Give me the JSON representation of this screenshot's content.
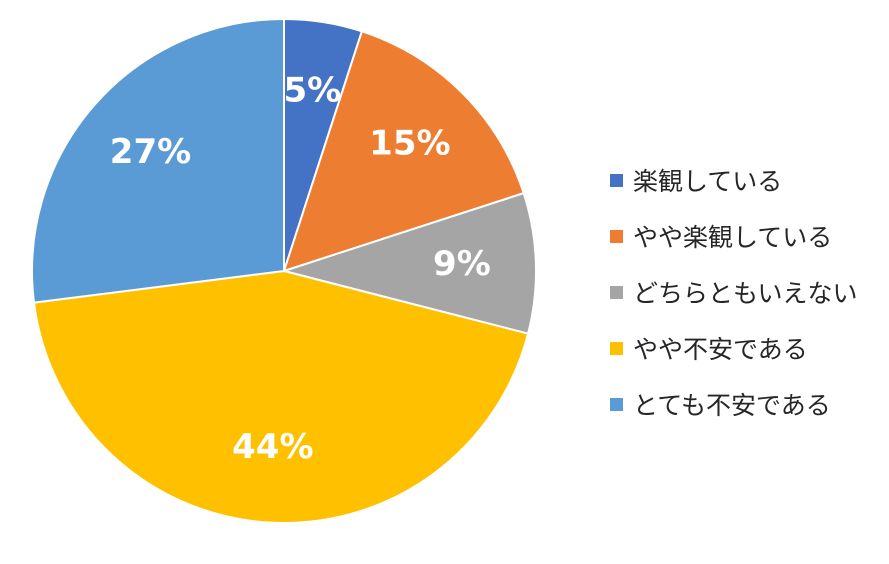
{
  "chart_data": {
    "type": "pie",
    "title": "",
    "start_angle_deg": 0,
    "direction": "clockwise",
    "legend_position": "right",
    "slices": [
      {
        "label": "楽観している",
        "value": 5,
        "display": "5%",
        "color": "#4472C4"
      },
      {
        "label": "やや楽観している",
        "value": 15,
        "display": "15%",
        "color": "#ED7D31"
      },
      {
        "label": "どちらともいえない",
        "value": 9,
        "display": "9%",
        "color": "#A5A5A5"
      },
      {
        "label": "やや不安である",
        "value": 44,
        "display": "44%",
        "color": "#FFC000"
      },
      {
        "label": "とても不安である",
        "value": 27,
        "display": "27%",
        "color": "#5B9BD5"
      }
    ]
  }
}
